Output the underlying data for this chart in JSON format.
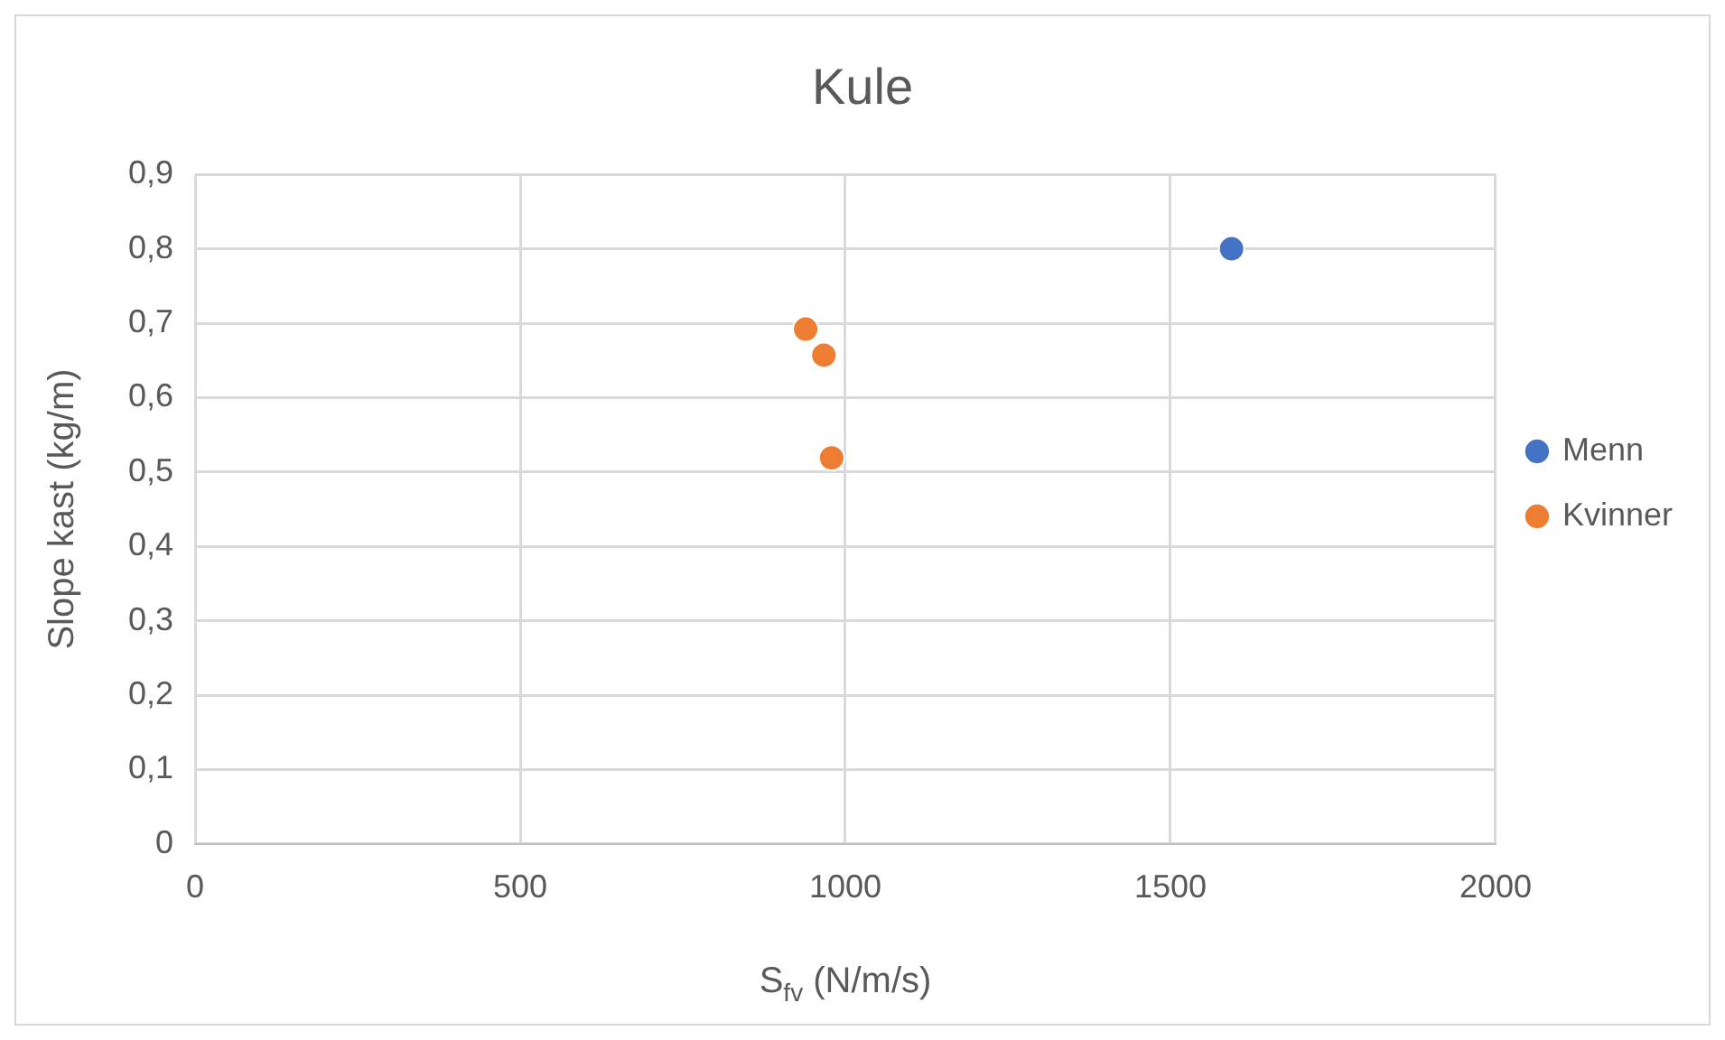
{
  "chart_data": {
    "type": "scatter",
    "title": "Kule",
    "xlabel": "S$_{fv}$ (N/m/s)",
    "ylabel": "Slope kast (kg/m)",
    "xlim": [
      0,
      2000
    ],
    "xticks": [
      0,
      500,
      1000,
      1500,
      2000
    ],
    "ylim": [
      0,
      0.9
    ],
    "yticks": [
      0,
      {
        "value": 0.1,
        "label": "0,1"
      },
      {
        "value": 0.2,
        "label": "0,2"
      },
      {
        "value": 0.3,
        "label": "0,3"
      },
      {
        "value": 0.4,
        "label": "0,4"
      },
      {
        "value": 0.5,
        "label": "0,5"
      },
      {
        "value": 0.6,
        "label": "0,6"
      },
      {
        "value": 0.7,
        "label": "0,7"
      },
      {
        "value": 0.8,
        "label": "0,8"
      },
      {
        "value": 0.9,
        "label": "0,9"
      }
    ],
    "grid": true,
    "legend": "right",
    "marker": "circle",
    "series": [
      {
        "name": "Menn",
        "color": "#4472c4",
        "x": [
          1594
        ],
        "values": [
          0.8
        ]
      },
      {
        "name": "Kvinner",
        "color": "#ed7d31",
        "x": [
          939,
          967,
          979
        ],
        "values": [
          0.692,
          0.657,
          0.519
        ]
      }
    ]
  }
}
